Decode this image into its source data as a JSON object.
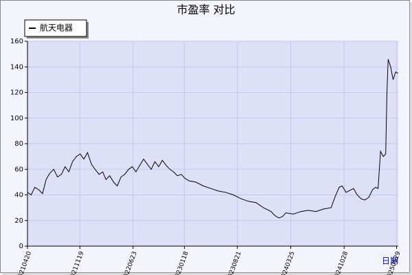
{
  "chart_data": {
    "type": "line",
    "title": "市盈率  对比",
    "x_label": "日期",
    "x": [
      "20210420",
      "20210505",
      "20210520",
      "20210605",
      "20210620",
      "20210705",
      "20210720",
      "20210805",
      "20210820",
      "20210905",
      "20210920",
      "20211005",
      "20211020",
      "20211105",
      "20211120",
      "20211205",
      "20211220",
      "20220105",
      "20220120",
      "20220205",
      "20220220",
      "20220305",
      "20220320",
      "20220405",
      "20220420",
      "20220505",
      "20220520",
      "20220605",
      "20220620",
      "20220705",
      "20220720",
      "20220805",
      "20220820",
      "20220905",
      "20220920",
      "20221005",
      "20221020",
      "20221105",
      "20221120",
      "20221205",
      "20221220",
      "20230105",
      "20230120",
      "20230205",
      "20230305",
      "20230405",
      "20230505",
      "20230605",
      "20230705",
      "20230805",
      "20230905",
      "20231005",
      "20231105",
      "20231205",
      "20240105",
      "20240120",
      "20240205",
      "20240220",
      "20240305",
      "20240405",
      "20240505",
      "20240605",
      "20240705",
      "20240805",
      "20240905",
      "20240920",
      "20241008",
      "20241020",
      "20241105",
      "20241205",
      "20241220",
      "20250105",
      "20250120",
      "20250205",
      "20250220",
      "20250305",
      "20250315",
      "20250325",
      "20250405",
      "20250415",
      "20250420",
      "20250425",
      "20250505",
      "20250515",
      "20250525",
      "20250605"
    ],
    "series": [
      {
        "name": "航天电器",
        "color": "#000000",
        "values": [
          42,
          40,
          46,
          44,
          41,
          52,
          57,
          60,
          54,
          56,
          62,
          58,
          66,
          70,
          72,
          68,
          73,
          64,
          60,
          56,
          58,
          52,
          55,
          50,
          47,
          54,
          56,
          60,
          62,
          58,
          63,
          68,
          64,
          60,
          66,
          62,
          67,
          63,
          60,
          58,
          55,
          56,
          53,
          51,
          50,
          47,
          45,
          43,
          42,
          40,
          37,
          35,
          34,
          30,
          27,
          24,
          22,
          23,
          26,
          25,
          27,
          28,
          27,
          29,
          30,
          38,
          46,
          47,
          42,
          45,
          40,
          37,
          36,
          38,
          44,
          46,
          45,
          74,
          70,
          72,
          120,
          146,
          140,
          130,
          136,
          135
        ]
      }
    ],
    "xlim": [
      "20210420",
      "20250605"
    ],
    "xticks": [
      "20210420",
      "20211119",
      "20220623",
      "20230118",
      "20230821",
      "20240325",
      "20241028",
      "20250529"
    ],
    "ylim": [
      0,
      160
    ],
    "yticks": [
      0,
      20,
      40,
      60,
      80,
      100,
      120,
      140,
      160
    ],
    "grid": true,
    "legend": "top-left"
  }
}
